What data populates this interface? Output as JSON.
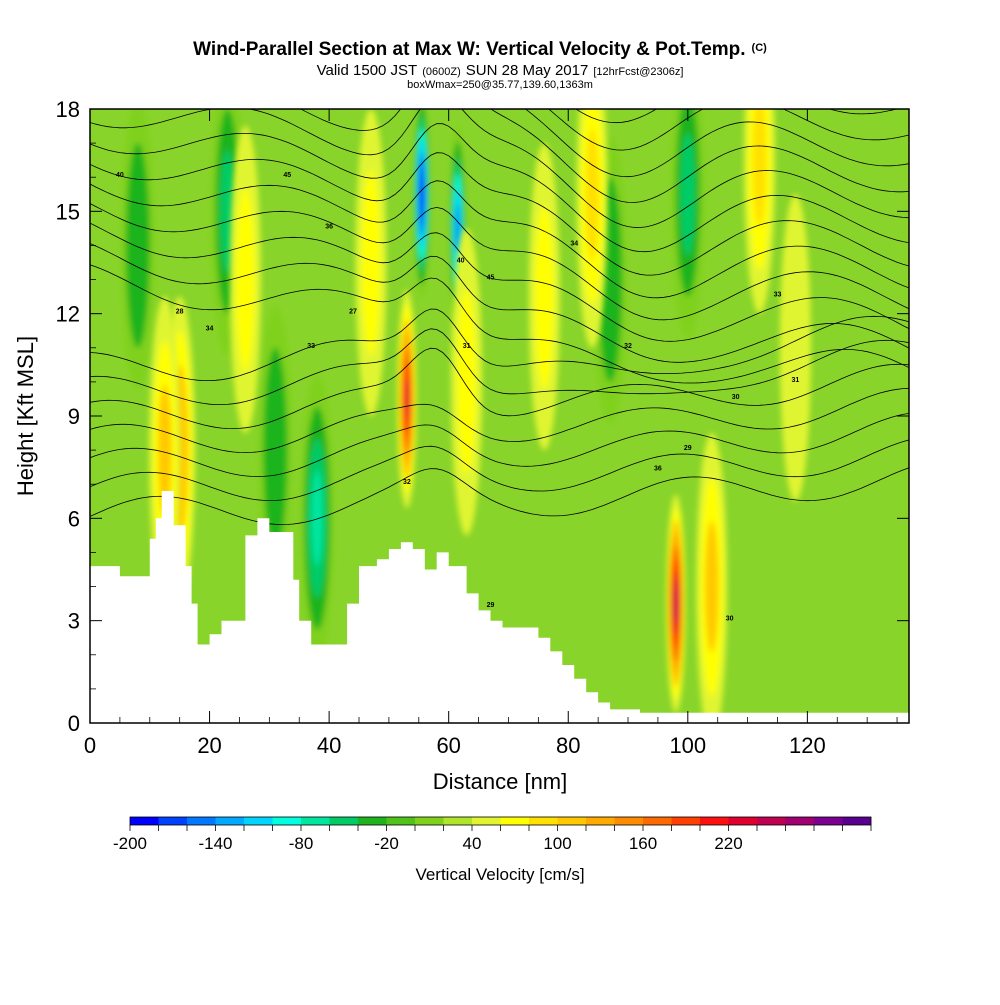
{
  "figure": {
    "title": "Wind-Parallel Section at Max W: Vertical Velocity & Pot.Temp.",
    "title_mark": "(C)",
    "subtitle_parts": [
      "Valid 1500 JST",
      "(0600Z)",
      "SUN 28 May 2017",
      "[12hrFcst@2306z]"
    ],
    "info": "boxWmax=250@35.77,139.60,1363m"
  },
  "chart_data": {
    "type": "heatmap",
    "title": "Wind-Parallel Section at Max W: Vertical Velocity & Pot.Temp.",
    "xlabel": "Distance [nm]",
    "ylabel": "Height [Kft MSL]",
    "xlim": [
      0,
      137
    ],
    "ylim": [
      0,
      18
    ],
    "xticks": [
      0,
      20,
      40,
      60,
      80,
      100,
      120
    ],
    "yticks": [
      0,
      3,
      6,
      9,
      12,
      15,
      18
    ],
    "colorbar": {
      "label": "Vertical Velocity [cm/s]",
      "min": -200,
      "step": 20,
      "tick_labels": [
        "-200",
        "-140",
        "-80",
        "-20",
        "40",
        "100",
        "160",
        "220"
      ],
      "tick_values": [
        -200,
        -140,
        -80,
        -20,
        40,
        100,
        160,
        220
      ],
      "colors": [
        "#0000ff",
        "#0040ff",
        "#0078ff",
        "#00a8ff",
        "#00d4ff",
        "#00ffe0",
        "#00e6a0",
        "#00cc66",
        "#1fb41f",
        "#50c21a",
        "#7fd11a",
        "#b0e62a",
        "#e0f530",
        "#ffff00",
        "#ffe000",
        "#ffc800",
        "#ffaa00",
        "#ff8c00",
        "#ff6a00",
        "#ff4000",
        "#ff1010",
        "#e00030",
        "#c00050",
        "#a00070",
        "#7a0090",
        "#5a0090"
      ]
    },
    "terrain_profile": [
      [
        0,
        4.6
      ],
      [
        5,
        4.6
      ],
      [
        5,
        4.3
      ],
      [
        10,
        4.3
      ],
      [
        10,
        5.4
      ],
      [
        11,
        5.4
      ],
      [
        11,
        6.0
      ],
      [
        12,
        6.0
      ],
      [
        12,
        6.8
      ],
      [
        14,
        6.8
      ],
      [
        14,
        5.8
      ],
      [
        16,
        5.8
      ],
      [
        16,
        4.6
      ],
      [
        17,
        4.6
      ],
      [
        17,
        3.5
      ],
      [
        18,
        3.5
      ],
      [
        18,
        2.3
      ],
      [
        20,
        2.3
      ],
      [
        20,
        2.6
      ],
      [
        22,
        2.6
      ],
      [
        22,
        3.0
      ],
      [
        26,
        3.0
      ],
      [
        26,
        5.5
      ],
      [
        28,
        5.5
      ],
      [
        28,
        6.0
      ],
      [
        30,
        6.0
      ],
      [
        30,
        5.6
      ],
      [
        34,
        5.6
      ],
      [
        34,
        4.2
      ],
      [
        35,
        4.2
      ],
      [
        35,
        3.0
      ],
      [
        37,
        3.0
      ],
      [
        37,
        2.3
      ],
      [
        43,
        2.3
      ],
      [
        43,
        3.5
      ],
      [
        45,
        3.5
      ],
      [
        45,
        4.6
      ],
      [
        48,
        4.6
      ],
      [
        48,
        4.8
      ],
      [
        50,
        4.8
      ],
      [
        50,
        5.1
      ],
      [
        52,
        5.1
      ],
      [
        52,
        5.3
      ],
      [
        54,
        5.3
      ],
      [
        54,
        5.1
      ],
      [
        56,
        5.1
      ],
      [
        56,
        4.5
      ],
      [
        58,
        4.5
      ],
      [
        58,
        5.0
      ],
      [
        60,
        5.0
      ],
      [
        60,
        4.6
      ],
      [
        63,
        4.6
      ],
      [
        63,
        3.8
      ],
      [
        65,
        3.8
      ],
      [
        65,
        3.3
      ],
      [
        67,
        3.3
      ],
      [
        67,
        3.0
      ],
      [
        69,
        3.0
      ],
      [
        69,
        2.8
      ],
      [
        75,
        2.8
      ],
      [
        75,
        2.5
      ],
      [
        77,
        2.5
      ],
      [
        77,
        2.1
      ],
      [
        79,
        2.1
      ],
      [
        79,
        1.7
      ],
      [
        81,
        1.7
      ],
      [
        81,
        1.3
      ],
      [
        83,
        1.3
      ],
      [
        83,
        0.9
      ],
      [
        85,
        0.9
      ],
      [
        85,
        0.6
      ],
      [
        87,
        0.6
      ],
      [
        87,
        0.4
      ],
      [
        92,
        0.4
      ],
      [
        92,
        0.3
      ],
      [
        137,
        0.3
      ]
    ],
    "updrafts_cm_s": [
      {
        "x": 53,
        "y": 9.5,
        "w": 220
      },
      {
        "x": 98,
        "y": 3.5,
        "w": 250
      },
      {
        "x": 15,
        "y": 8.0,
        "w": 110
      },
      {
        "x": 12.5,
        "y": 8.0,
        "w": 100
      },
      {
        "x": 104,
        "y": 4.0,
        "w": 100
      },
      {
        "x": 84,
        "y": 15.5,
        "w": 90
      },
      {
        "x": 112,
        "y": 16.5,
        "w": 80
      },
      {
        "x": 76,
        "y": 12.5,
        "w": 60
      },
      {
        "x": 26,
        "y": 13.0,
        "w": 60
      },
      {
        "x": 63,
        "y": 10.0,
        "w": 60
      },
      {
        "x": 47,
        "y": 13.5,
        "w": 60
      },
      {
        "x": 118,
        "y": 11.0,
        "w": 50
      }
    ],
    "downdrafts_cm_s": [
      {
        "x": 55.5,
        "y": 15.5,
        "w": -200
      },
      {
        "x": 61.5,
        "y": 14.5,
        "w": -150
      },
      {
        "x": 38,
        "y": 6.0,
        "w": -80
      },
      {
        "x": 23,
        "y": 15.0,
        "w": -60
      },
      {
        "x": 87,
        "y": 13.0,
        "w": -40
      },
      {
        "x": 100,
        "y": 15.5,
        "w": -60
      },
      {
        "x": 8,
        "y": 14.0,
        "w": -40
      },
      {
        "x": 31,
        "y": 8.0,
        "w": -40
      }
    ],
    "contour_label_text": [
      "40",
      "45",
      "36",
      "34",
      "33",
      "32",
      "31",
      "30",
      "29",
      "28",
      "27"
    ]
  }
}
